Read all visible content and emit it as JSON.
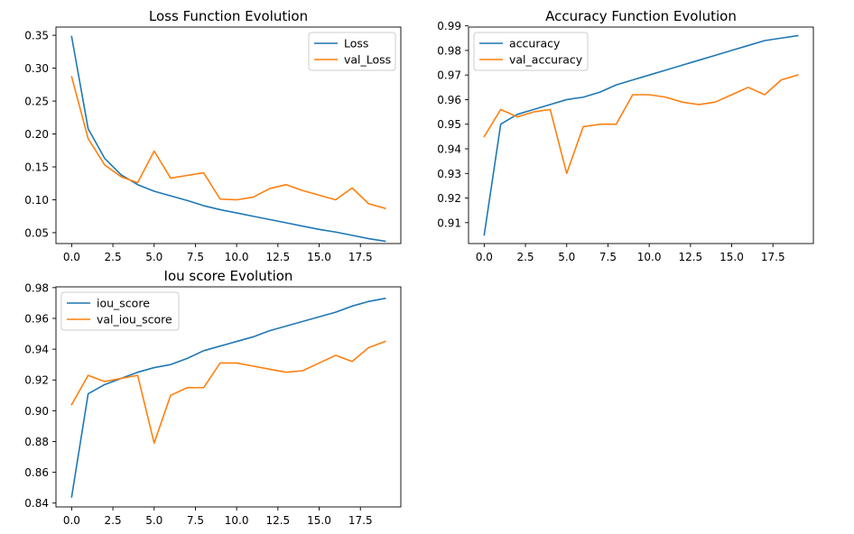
{
  "colors": {
    "train": "#1f77b4",
    "val": "#ff7f0e"
  },
  "chart_data": [
    {
      "type": "line",
      "title": "Loss Function Evolution",
      "x": [
        0,
        1,
        2,
        3,
        4,
        5,
        6,
        7,
        8,
        9,
        10,
        11,
        12,
        13,
        14,
        15,
        16,
        17,
        18,
        19
      ],
      "xlim": [
        -0.95,
        19.95
      ],
      "ylim": [
        0.0335,
        0.3625
      ],
      "xticks": [
        0,
        2.5,
        5,
        7.5,
        10,
        12.5,
        15,
        17.5
      ],
      "xtick_labels": [
        "0.0",
        "2.5",
        "5.0",
        "7.5",
        "10.0",
        "12.5",
        "15.0",
        "17.5"
      ],
      "yticks": [
        0.05,
        0.1,
        0.15,
        0.2,
        0.25,
        0.3,
        0.35
      ],
      "ytick_labels": [
        "0.05",
        "0.10",
        "0.15",
        "0.20",
        "0.25",
        "0.30",
        "0.35"
      ],
      "legend": "upper right",
      "series": [
        {
          "name": "Loss",
          "color": "#1f77b4",
          "values": [
            0.348,
            0.208,
            0.163,
            0.138,
            0.123,
            0.113,
            0.106,
            0.099,
            0.091,
            0.085,
            0.08,
            0.075,
            0.07,
            0.065,
            0.06,
            0.055,
            0.051,
            0.046,
            0.041,
            0.037
          ]
        },
        {
          "name": "val_Loss",
          "color": "#ff7f0e",
          "values": [
            0.287,
            0.193,
            0.153,
            0.135,
            0.126,
            0.174,
            0.133,
            0.137,
            0.141,
            0.101,
            0.1,
            0.104,
            0.117,
            0.123,
            0.114,
            0.107,
            0.1,
            0.118,
            0.094,
            0.087
          ]
        }
      ]
    },
    {
      "type": "line",
      "title": "Accuracy Function Evolution",
      "x": [
        0,
        1,
        2,
        3,
        4,
        5,
        6,
        7,
        8,
        9,
        10,
        11,
        12,
        13,
        14,
        15,
        16,
        17,
        18,
        19
      ],
      "xlim": [
        -0.95,
        19.95
      ],
      "ylim": [
        0.9015,
        0.9895
      ],
      "xticks": [
        0,
        2.5,
        5,
        7.5,
        10,
        12.5,
        15,
        17.5
      ],
      "xtick_labels": [
        "0.0",
        "2.5",
        "5.0",
        "7.5",
        "10.0",
        "12.5",
        "15.0",
        "17.5"
      ],
      "yticks": [
        0.91,
        0.92,
        0.93,
        0.94,
        0.95,
        0.96,
        0.97,
        0.98,
        0.99
      ],
      "ytick_labels": [
        "0.91",
        "0.92",
        "0.93",
        "0.94",
        "0.95",
        "0.96",
        "0.97",
        "0.98",
        "0.99"
      ],
      "legend": "upper left",
      "series": [
        {
          "name": "accuracy",
          "color": "#1f77b4",
          "values": [
            0.905,
            0.95,
            0.954,
            0.956,
            0.958,
            0.96,
            0.961,
            0.963,
            0.966,
            0.968,
            0.97,
            0.972,
            0.974,
            0.976,
            0.978,
            0.98,
            0.982,
            0.984,
            0.985,
            0.986
          ]
        },
        {
          "name": "val_accuracy",
          "color": "#ff7f0e",
          "values": [
            0.945,
            0.956,
            0.953,
            0.955,
            0.956,
            0.93,
            0.949,
            0.95,
            0.95,
            0.962,
            0.962,
            0.961,
            0.959,
            0.958,
            0.959,
            0.962,
            0.965,
            0.962,
            0.968,
            0.97
          ]
        }
      ]
    },
    {
      "type": "line",
      "title": "Iou score Evolution",
      "x": [
        0,
        1,
        2,
        3,
        4,
        5,
        6,
        7,
        8,
        9,
        10,
        11,
        12,
        13,
        14,
        15,
        16,
        17,
        18,
        19
      ],
      "xlim": [
        -0.95,
        19.95
      ],
      "ylim": [
        0.8375,
        0.9805
      ],
      "xticks": [
        0,
        2.5,
        5,
        7.5,
        10,
        12.5,
        15,
        17.5
      ],
      "xtick_labels": [
        "0.0",
        "2.5",
        "5.0",
        "7.5",
        "10.0",
        "12.5",
        "15.0",
        "17.5"
      ],
      "yticks": [
        0.84,
        0.86,
        0.88,
        0.9,
        0.92,
        0.94,
        0.96,
        0.98
      ],
      "ytick_labels": [
        "0.84",
        "0.86",
        "0.88",
        "0.90",
        "0.92",
        "0.94",
        "0.96",
        "0.98"
      ],
      "legend": "upper left",
      "series": [
        {
          "name": "iou_score",
          "color": "#1f77b4",
          "values": [
            0.844,
            0.911,
            0.917,
            0.921,
            0.925,
            0.928,
            0.93,
            0.934,
            0.939,
            0.942,
            0.945,
            0.948,
            0.952,
            0.955,
            0.958,
            0.961,
            0.964,
            0.968,
            0.971,
            0.973
          ]
        },
        {
          "name": "val_iou_score",
          "color": "#ff7f0e",
          "values": [
            0.904,
            0.923,
            0.919,
            0.921,
            0.923,
            0.879,
            0.91,
            0.915,
            0.915,
            0.931,
            0.931,
            0.929,
            0.927,
            0.925,
            0.926,
            0.931,
            0.936,
            0.932,
            0.941,
            0.945
          ]
        }
      ]
    }
  ]
}
